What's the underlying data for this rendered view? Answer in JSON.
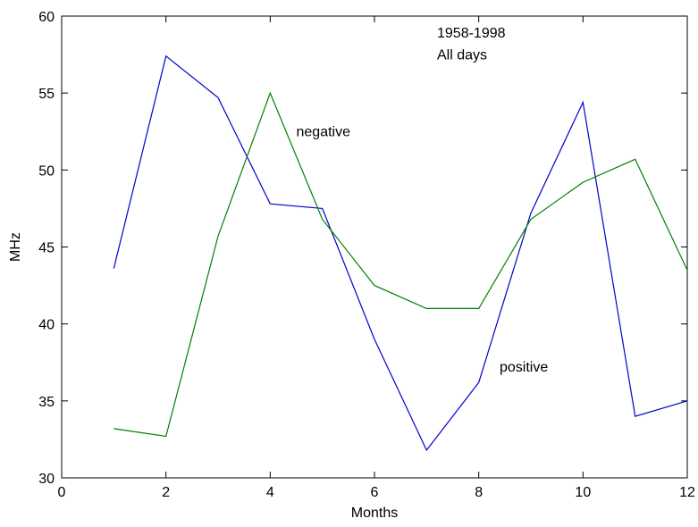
{
  "chart_data": {
    "type": "line",
    "xlabel": "Months",
    "ylabel": "MHz",
    "xlim": [
      0,
      12
    ],
    "ylim": [
      30,
      60
    ],
    "x_ticks": [
      0,
      2,
      4,
      6,
      8,
      10,
      12
    ],
    "y_ticks": [
      30,
      35,
      40,
      45,
      50,
      55,
      60
    ],
    "grid": false,
    "x": [
      1,
      2,
      3,
      4,
      5,
      6,
      7,
      8,
      9,
      10,
      11,
      12
    ],
    "series": [
      {
        "color": "#0000cc",
        "values": [
          43.6,
          57.4,
          54.7,
          47.8,
          47.5,
          39.0,
          31.8,
          36.2,
          47.2,
          54.4,
          34.0,
          35.0
        ]
      },
      {
        "color": "#007f00",
        "values": [
          33.2,
          32.7,
          45.7,
          55.0,
          46.8,
          42.5,
          41.0,
          41.0,
          46.8,
          49.2,
          50.7,
          43.5
        ]
      }
    ],
    "annotations": [
      {
        "text": "1958-1998",
        "x": 7.2,
        "y": 58.6
      },
      {
        "text": "All days",
        "x": 7.2,
        "y": 57.2
      },
      {
        "text": "negative",
        "x": 4.5,
        "y": 52.2
      },
      {
        "text": "positive",
        "x": 8.4,
        "y": 36.9
      }
    ]
  }
}
